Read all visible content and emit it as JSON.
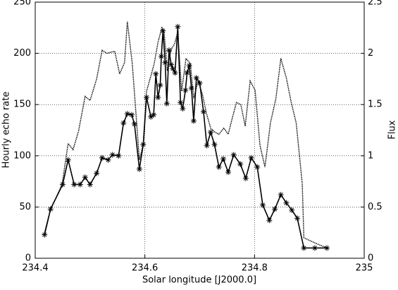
{
  "chart_data": {
    "type": "line",
    "xlabel": "Solar longitude [J2000.0]",
    "ylabel": "Hourly echo rate",
    "y2label": "Flux",
    "xlim": [
      234.4,
      235
    ],
    "xticks": [
      234.4,
      234.6,
      234.8,
      235
    ],
    "ylim": [
      0,
      250
    ],
    "yticks": [
      0,
      50,
      100,
      150,
      200,
      250
    ],
    "y2lim": [
      0,
      2.5
    ],
    "y2ticks": [
      0,
      0.5,
      1,
      1.5,
      2,
      2.5
    ],
    "grid": true,
    "series": [
      {
        "color": "#000000",
        "marker": "asterisk",
        "dash": "solid",
        "x": [
          234.417,
          234.428,
          234.45,
          234.46,
          234.471,
          234.482,
          234.491,
          234.5,
          234.512,
          234.522,
          234.533,
          234.541,
          234.552,
          234.561,
          234.568,
          234.576,
          234.581,
          234.59,
          234.597,
          234.603,
          234.611,
          234.616,
          234.62,
          234.624,
          234.628,
          234.63,
          234.633,
          234.637,
          234.64,
          234.644,
          234.648,
          234.651,
          234.655,
          234.66,
          234.665,
          234.669,
          234.674,
          234.677,
          234.681,
          234.685,
          234.689,
          234.694,
          234.7,
          234.707,
          234.713,
          234.72,
          234.727,
          234.735,
          234.743,
          234.752,
          234.762,
          234.774,
          234.784,
          234.794,
          234.805,
          234.815,
          234.827,
          234.837,
          234.848,
          234.858,
          234.868,
          234.878,
          234.89,
          234.91,
          234.932
        ],
        "values": [
          23,
          48,
          72,
          96,
          72,
          72,
          79,
          72,
          83,
          98,
          96,
          101,
          100,
          132,
          141,
          140,
          131,
          87,
          111,
          157,
          138,
          140,
          180,
          157,
          169,
          197,
          222,
          191,
          151,
          203,
          189,
          185,
          181,
          226,
          152,
          146,
          164,
          181,
          188,
          166,
          134,
          176,
          171,
          143,
          110,
          123,
          111,
          89,
          97,
          84,
          101,
          92,
          78,
          98,
          89,
          52,
          37,
          48,
          62,
          54,
          47,
          39,
          10,
          10,
          10
        ]
      },
      {
        "color": "#000000",
        "marker": "none",
        "dash": "dotted",
        "axis": "y2",
        "x": [
          234.417,
          234.428,
          234.438,
          234.449,
          234.46,
          234.469,
          234.479,
          234.491,
          234.5,
          234.512,
          234.522,
          234.531,
          234.537,
          234.545,
          234.554,
          234.563,
          234.568,
          234.577,
          234.585,
          234.59,
          234.597,
          234.603,
          234.611,
          234.617,
          234.624,
          234.631,
          234.635,
          234.641,
          234.648,
          234.654,
          234.66,
          234.667,
          234.675,
          234.683,
          234.689,
          234.697,
          234.705,
          234.712,
          234.72,
          234.728,
          234.735,
          234.744,
          234.752,
          234.76,
          234.767,
          234.775,
          234.783,
          234.792,
          234.801,
          234.81,
          234.819,
          234.829,
          234.839,
          234.848,
          234.858,
          234.867,
          234.876,
          234.887,
          234.89,
          234.91,
          234.932
        ],
        "values": [
          0.25,
          0.48,
          0.59,
          0.72,
          1.12,
          1.06,
          1.24,
          1.58,
          1.54,
          1.75,
          2.03,
          2.0,
          2.01,
          2.02,
          1.8,
          1.91,
          2.31,
          1.9,
          1.32,
          0.96,
          1.11,
          1.63,
          1.78,
          1.9,
          2.11,
          2.25,
          2.21,
          1.83,
          2.04,
          2.09,
          2.21,
          1.63,
          1.95,
          1.9,
          1.56,
          1.73,
          1.6,
          1.42,
          1.27,
          1.23,
          1.21,
          1.27,
          1.21,
          1.38,
          1.52,
          1.5,
          1.29,
          1.73,
          1.64,
          1.1,
          0.89,
          1.32,
          1.56,
          1.95,
          1.76,
          1.52,
          1.32,
          0.73,
          0.2,
          0.15,
          0.1
        ]
      }
    ]
  }
}
